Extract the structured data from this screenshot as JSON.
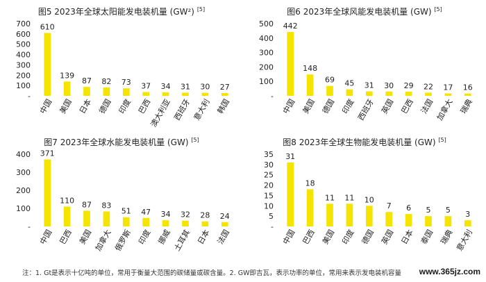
{
  "chart_data": [
    {
      "type": "bar",
      "title": "图5 2023年全球太阳能发电装机量 (GW²) ",
      "title_sup": "[5]",
      "categories": [
        "中国",
        "美国",
        "日本",
        "德国",
        "印度",
        "巴西",
        "澳大利亚",
        "西班牙",
        "意大利",
        "韩国"
      ],
      "values": [
        610,
        139,
        87,
        82,
        73,
        37,
        34,
        31,
        30,
        27
      ],
      "yticks": [
        "700",
        "600",
        "500",
        "400",
        "300",
        "200",
        "100",
        "-"
      ],
      "ylim": [
        0,
        700
      ],
      "bar_color": "#f5e400",
      "grid": false
    },
    {
      "type": "bar",
      "title": "图6 2023年全球风能发电装机量 (GW) ",
      "title_sup": "[5]",
      "categories": [
        "中国",
        "美国",
        "德国",
        "印度",
        "西班牙",
        "英国",
        "巴西",
        "法国",
        "加拿大",
        "瑞典"
      ],
      "values": [
        442,
        148,
        69,
        45,
        31,
        30,
        29,
        22,
        17,
        16
      ],
      "yticks": [
        "500",
        "400",
        "300",
        "200",
        "100",
        "-"
      ],
      "ylim": [
        0,
        500
      ],
      "bar_color": "#f5e400",
      "grid": false
    },
    {
      "type": "bar",
      "title": "图7 2023年全球水能发电装机量 (GW) ",
      "title_sup": "[5]",
      "categories": [
        "中国",
        "巴西",
        "美国",
        "加拿大",
        "俄罗斯",
        "印度",
        "挪威",
        "土耳其",
        "日本",
        "法国"
      ],
      "values": [
        371,
        110,
        87,
        83,
        51,
        47,
        34,
        32,
        28,
        24
      ],
      "yticks": [
        "400",
        "300",
        "200",
        "100",
        "-"
      ],
      "ylim": [
        0,
        400
      ],
      "bar_color": "#f5e400",
      "grid": false
    },
    {
      "type": "bar",
      "title": "图8 2023年全球生物能发电装机量 (GW) ",
      "title_sup": "[5]",
      "categories": [
        "中国",
        "巴西",
        "美国",
        "印度",
        "德国",
        "英国",
        "日本",
        "泰国",
        "瑞典",
        "意大利"
      ],
      "values": [
        31,
        18,
        11,
        11,
        10,
        7,
        6,
        5,
        5,
        3
      ],
      "yticks": [
        "35",
        "30",
        "25",
        "20",
        "15",
        "10",
        "5",
        "-"
      ],
      "ylim": [
        0,
        35
      ],
      "bar_color": "#f5e400",
      "grid": false
    }
  ],
  "footnote": "注：1. Gt是表示十亿吨的单位，常用于衡量大范围的碳储量或碳含量。2. GW即吉瓦，表示功率的单位，常用来表示发电装机容量",
  "watermark": "www.365jz.com"
}
